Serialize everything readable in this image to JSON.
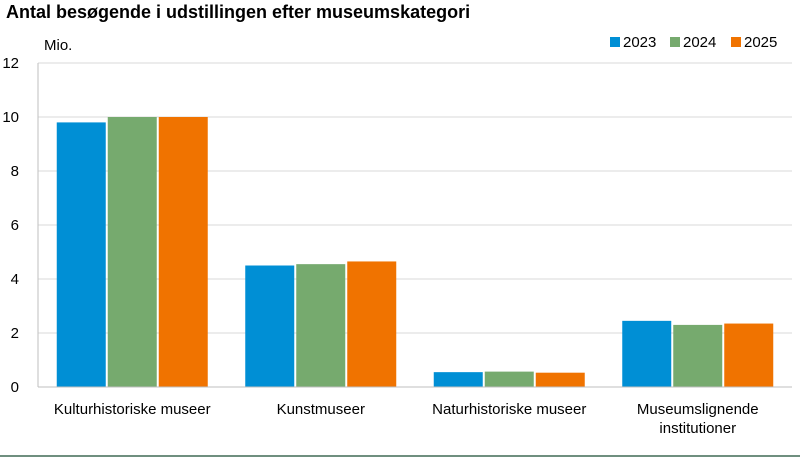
{
  "chart_data": {
    "type": "bar",
    "title": "Antal besøgende i udstillingen efter museumskategori",
    "ylabel": "Mio.",
    "xlabel": "",
    "ylim": [
      0,
      12
    ],
    "yticks": [
      0,
      2,
      4,
      6,
      8,
      10,
      12
    ],
    "grid": true,
    "legend_position": "top-right",
    "categories": [
      [
        "Kulturhistoriske museer"
      ],
      [
        "Kunstmuseer"
      ],
      [
        "Naturhistoriske museer"
      ],
      [
        "Museumslignende",
        "institutioner"
      ]
    ],
    "series": [
      {
        "name": "2023",
        "color": "#008fd5",
        "values": [
          9.8,
          4.5,
          0.55,
          2.45
        ]
      },
      {
        "name": "2024",
        "color": "#76aa6e",
        "values": [
          10.0,
          4.55,
          0.57,
          2.3
        ]
      },
      {
        "name": "2025",
        "color": "#f07300",
        "values": [
          10.0,
          4.65,
          0.53,
          2.35
        ]
      }
    ]
  },
  "colors": {
    "grid": "#d9d9d9",
    "axis": "#bfbfbf",
    "bottom_rule": "#6f8f7f"
  }
}
